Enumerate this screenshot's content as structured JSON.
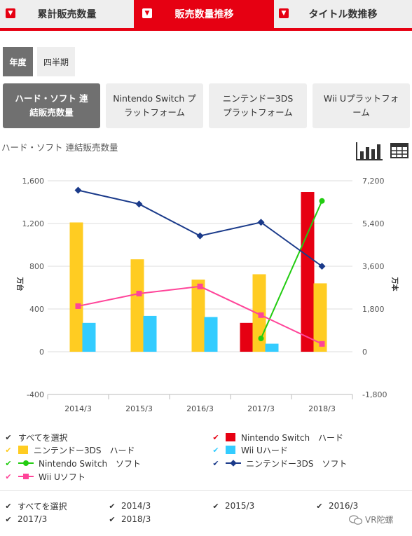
{
  "tabs": [
    {
      "label": "累計販売数量",
      "active": false
    },
    {
      "label": "販売数量推移",
      "active": true
    },
    {
      "label": "タイトル数推移",
      "active": false
    }
  ],
  "period_toggle": [
    {
      "label": "年度",
      "active": true
    },
    {
      "label": "四半期",
      "active": false
    }
  ],
  "categories_buttons": [
    {
      "label": "ハード・ソフト 連\n結販売数量",
      "active": true
    },
    {
      "label": "Nintendo Switch プ\nラットフォーム",
      "active": false
    },
    {
      "label": "ニンテンドー3DS\nプラットフォーム",
      "active": false
    },
    {
      "label": "Wii Uプラットフォ\nーム",
      "active": false
    }
  ],
  "chart_title": "ハード・ソフト 連結販売数量",
  "view_icons": [
    "bar-chart-icon",
    "table-icon"
  ],
  "legend": {
    "select_all": "すべてを選択",
    "items": [
      {
        "label": "Nintendo Switch　ハード",
        "color": "#e60012",
        "kind": "bar"
      },
      {
        "label": "ニンテンドー3DS　ハード",
        "color": "#ffcc22",
        "kind": "bar"
      },
      {
        "label": "Wii Uハード",
        "color": "#33ccff",
        "kind": "bar"
      },
      {
        "label": "Nintendo Switch　ソフト",
        "color": "#22cc11",
        "kind": "line",
        "marker": "circle"
      },
      {
        "label": "ニンテンドー3DS　ソフト",
        "color": "#1a3a8a",
        "kind": "line",
        "marker": "diamond"
      },
      {
        "label": "Wii Uソフト",
        "color": "#ff4499",
        "kind": "line",
        "marker": "square"
      }
    ]
  },
  "year_filter": {
    "select_all": "すべてを選択",
    "years": [
      "2014/3",
      "2015/3",
      "2016/3",
      "2017/3",
      "2018/3"
    ]
  },
  "watermark": "VR陀螺",
  "chart_data": {
    "type": "bar",
    "categories": [
      "2014/3",
      "2015/3",
      "2016/3",
      "2017/3",
      "2018/3"
    ],
    "ylabel": "万台",
    "y2label": "万本",
    "ylim": [
      -400,
      1600
    ],
    "yticks": [
      -400,
      0,
      400,
      800,
      1200,
      1600
    ],
    "ytick_labels": [
      "-400",
      "0",
      "400",
      "800",
      "1,200",
      "1,600"
    ],
    "y2lim": [
      -1800,
      7200
    ],
    "y2ticks": [
      -1800,
      0,
      1800,
      3600,
      5400,
      7200
    ],
    "y2tick_labels": [
      "-1,800",
      "0",
      "1,800",
      "3,600",
      "5,400",
      "7,200"
    ],
    "grid": true,
    "bar_series": [
      {
        "name": "Nintendo Switch　ハード",
        "color": "#e60012",
        "values": [
          null,
          null,
          null,
          270,
          1495
        ]
      },
      {
        "name": "ニンテンドー3DS　ハード",
        "color": "#ffcc22",
        "values": [
          1210,
          865,
          675,
          725,
          640
        ]
      },
      {
        "name": "Wii Uハード",
        "color": "#33ccff",
        "values": [
          270,
          335,
          325,
          75,
          null
        ]
      }
    ],
    "line_series": [
      {
        "name": "Nintendo Switch　ソフト",
        "color": "#22cc11",
        "marker": "circle",
        "axis": "right",
        "values": [
          null,
          null,
          null,
          560,
          6350
        ]
      },
      {
        "name": "ニンテンドー3DS　ソフト",
        "color": "#1a3a8a",
        "marker": "diamond",
        "axis": "right",
        "values": [
          6800,
          6220,
          4880,
          5450,
          3600
        ]
      },
      {
        "name": "Wii Uソフト",
        "color": "#ff4499",
        "marker": "square",
        "axis": "right",
        "values": [
          1920,
          2450,
          2750,
          1540,
          330
        ]
      }
    ]
  }
}
